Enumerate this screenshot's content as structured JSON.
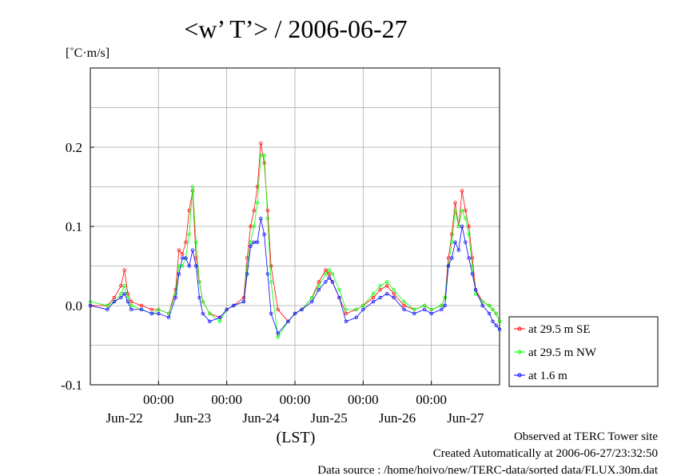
{
  "chart_data": {
    "type": "line",
    "title": "<w’ T’> / 2006-06-27",
    "ylabel": "[˚C·m/s]",
    "xlabel": "(LST)",
    "ylim": [
      -0.1,
      0.3
    ],
    "yticks": [
      -0.1,
      0.0,
      0.1,
      0.2
    ],
    "ytick_labels": [
      "-0.1",
      "0.0",
      "0.1",
      "0.2"
    ],
    "xlim_days": [
      0,
      6
    ],
    "xticks_days": [
      1,
      2,
      3,
      4,
      5
    ],
    "xtick_time_labels": [
      "00:00",
      "00:00",
      "00:00",
      "00:00",
      "00:00"
    ],
    "xday_labels": [
      "Jun-22",
      "Jun-23",
      "Jun-24",
      "Jun-25",
      "Jun-26",
      "Jun-27"
    ],
    "grid": true,
    "legend_position": "right",
    "series": [
      {
        "name": "at 29.5 m SE",
        "color": "#ff0000",
        "x": [
          0,
          0.25,
          0.35,
          0.45,
          0.5,
          0.55,
          0.6,
          0.75,
          0.9,
          1.0,
          1.15,
          1.25,
          1.3,
          1.35,
          1.4,
          1.45,
          1.5,
          1.55,
          1.6,
          1.65,
          1.75,
          1.9,
          2.0,
          2.1,
          2.25,
          2.3,
          2.35,
          2.4,
          2.45,
          2.5,
          2.55,
          2.6,
          2.65,
          2.75,
          2.9,
          3.0,
          3.1,
          3.25,
          3.35,
          3.45,
          3.5,
          3.55,
          3.65,
          3.75,
          3.9,
          4.0,
          4.15,
          4.25,
          4.35,
          4.45,
          4.6,
          4.75,
          4.9,
          5.0,
          5.15,
          5.2,
          5.25,
          5.3,
          5.35,
          5.4,
          5.45,
          5.5,
          5.55,
          5.6,
          5.65,
          5.75,
          5.85,
          5.9,
          5.95,
          6.0
        ],
        "y": [
          0.0,
          0.0,
          0.01,
          0.025,
          0.045,
          0.015,
          0.005,
          0.0,
          -0.005,
          -0.005,
          -0.01,
          0.02,
          0.07,
          0.065,
          0.08,
          0.12,
          0.145,
          0.06,
          0.03,
          0.005,
          -0.01,
          -0.015,
          -0.005,
          0.0,
          0.01,
          0.06,
          0.1,
          0.12,
          0.15,
          0.205,
          0.18,
          0.12,
          0.05,
          -0.005,
          -0.02,
          -0.01,
          -0.005,
          0.01,
          0.03,
          0.045,
          0.04,
          0.03,
          0.01,
          -0.01,
          -0.005,
          0.0,
          0.01,
          0.02,
          0.025,
          0.015,
          0.0,
          -0.005,
          0.0,
          -0.005,
          0.0,
          0.01,
          0.06,
          0.09,
          0.13,
          0.1,
          0.145,
          0.12,
          0.1,
          0.06,
          0.02,
          0.005,
          0.0,
          -0.005,
          -0.01,
          -0.02
        ]
      },
      {
        "name": "at 29.5 m NW",
        "color": "#00ff00",
        "x": [
          0,
          0.25,
          0.35,
          0.45,
          0.5,
          0.55,
          0.6,
          0.75,
          0.9,
          1.0,
          1.15,
          1.25,
          1.3,
          1.35,
          1.4,
          1.45,
          1.5,
          1.55,
          1.6,
          1.65,
          1.75,
          1.9,
          2.0,
          2.1,
          2.25,
          2.3,
          2.35,
          2.4,
          2.45,
          2.5,
          2.55,
          2.6,
          2.65,
          2.75,
          2.9,
          3.0,
          3.1,
          3.25,
          3.35,
          3.45,
          3.5,
          3.55,
          3.65,
          3.75,
          3.9,
          4.0,
          4.15,
          4.25,
          4.35,
          4.45,
          4.6,
          4.75,
          4.9,
          5.0,
          5.15,
          5.2,
          5.25,
          5.3,
          5.35,
          5.4,
          5.45,
          5.5,
          5.55,
          5.6,
          5.65,
          5.75,
          5.85,
          5.9,
          5.95,
          6.0
        ],
        "y": [
          0.005,
          0.0,
          0.005,
          0.015,
          0.025,
          0.01,
          0.0,
          -0.005,
          -0.01,
          -0.005,
          -0.01,
          0.015,
          0.05,
          0.05,
          0.06,
          0.09,
          0.15,
          0.08,
          0.03,
          0.005,
          -0.01,
          -0.02,
          -0.005,
          0.0,
          0.005,
          0.05,
          0.08,
          0.1,
          0.13,
          0.19,
          0.19,
          0.11,
          0.03,
          -0.04,
          -0.02,
          -0.01,
          -0.005,
          0.01,
          0.025,
          0.04,
          0.045,
          0.04,
          0.02,
          -0.005,
          -0.005,
          0.0,
          0.015,
          0.025,
          0.03,
          0.02,
          0.005,
          -0.005,
          0.0,
          -0.005,
          0.0,
          0.01,
          0.05,
          0.08,
          0.12,
          0.1,
          0.12,
          0.11,
          0.09,
          0.05,
          0.015,
          0.005,
          0.0,
          -0.005,
          -0.01,
          -0.02
        ]
      },
      {
        "name": "at 1.6 m",
        "color": "#0000ff",
        "x": [
          0,
          0.25,
          0.35,
          0.45,
          0.5,
          0.55,
          0.6,
          0.75,
          0.9,
          1.0,
          1.15,
          1.25,
          1.3,
          1.35,
          1.4,
          1.45,
          1.5,
          1.55,
          1.6,
          1.65,
          1.75,
          1.9,
          2.0,
          2.1,
          2.25,
          2.3,
          2.35,
          2.4,
          2.45,
          2.5,
          2.55,
          2.6,
          2.65,
          2.75,
          2.9,
          3.0,
          3.1,
          3.25,
          3.35,
          3.45,
          3.5,
          3.55,
          3.65,
          3.75,
          3.9,
          4.0,
          4.15,
          4.25,
          4.35,
          4.45,
          4.6,
          4.75,
          4.9,
          5.0,
          5.15,
          5.2,
          5.25,
          5.3,
          5.35,
          5.4,
          5.45,
          5.5,
          5.55,
          5.6,
          5.65,
          5.75,
          5.85,
          5.9,
          5.95,
          6.0
        ],
        "y": [
          0.0,
          -0.005,
          0.005,
          0.01,
          0.015,
          0.005,
          -0.005,
          -0.005,
          -0.01,
          -0.01,
          -0.015,
          0.01,
          0.04,
          0.06,
          0.06,
          0.05,
          0.07,
          0.05,
          0.01,
          -0.01,
          -0.02,
          -0.015,
          -0.005,
          0.0,
          0.005,
          0.04,
          0.075,
          0.08,
          0.08,
          0.11,
          0.09,
          0.04,
          -0.01,
          -0.035,
          -0.02,
          -0.01,
          -0.005,
          0.005,
          0.02,
          0.03,
          0.035,
          0.03,
          0.01,
          -0.02,
          -0.015,
          -0.005,
          0.005,
          0.01,
          0.015,
          0.01,
          -0.005,
          -0.01,
          -0.005,
          -0.01,
          -0.005,
          0.0,
          0.05,
          0.06,
          0.08,
          0.07,
          0.1,
          0.08,
          0.06,
          0.04,
          0.02,
          0.0,
          -0.01,
          -0.02,
          -0.025,
          -0.03
        ]
      }
    ]
  },
  "footer": {
    "line1": "Observed at TERC Tower site",
    "line2": "Created Automatically at 2006-06-27/23:32:50",
    "line3": "Data source : /home/hoivo/new/TERC-data/sorted  data/FLUX.30m.dat"
  }
}
